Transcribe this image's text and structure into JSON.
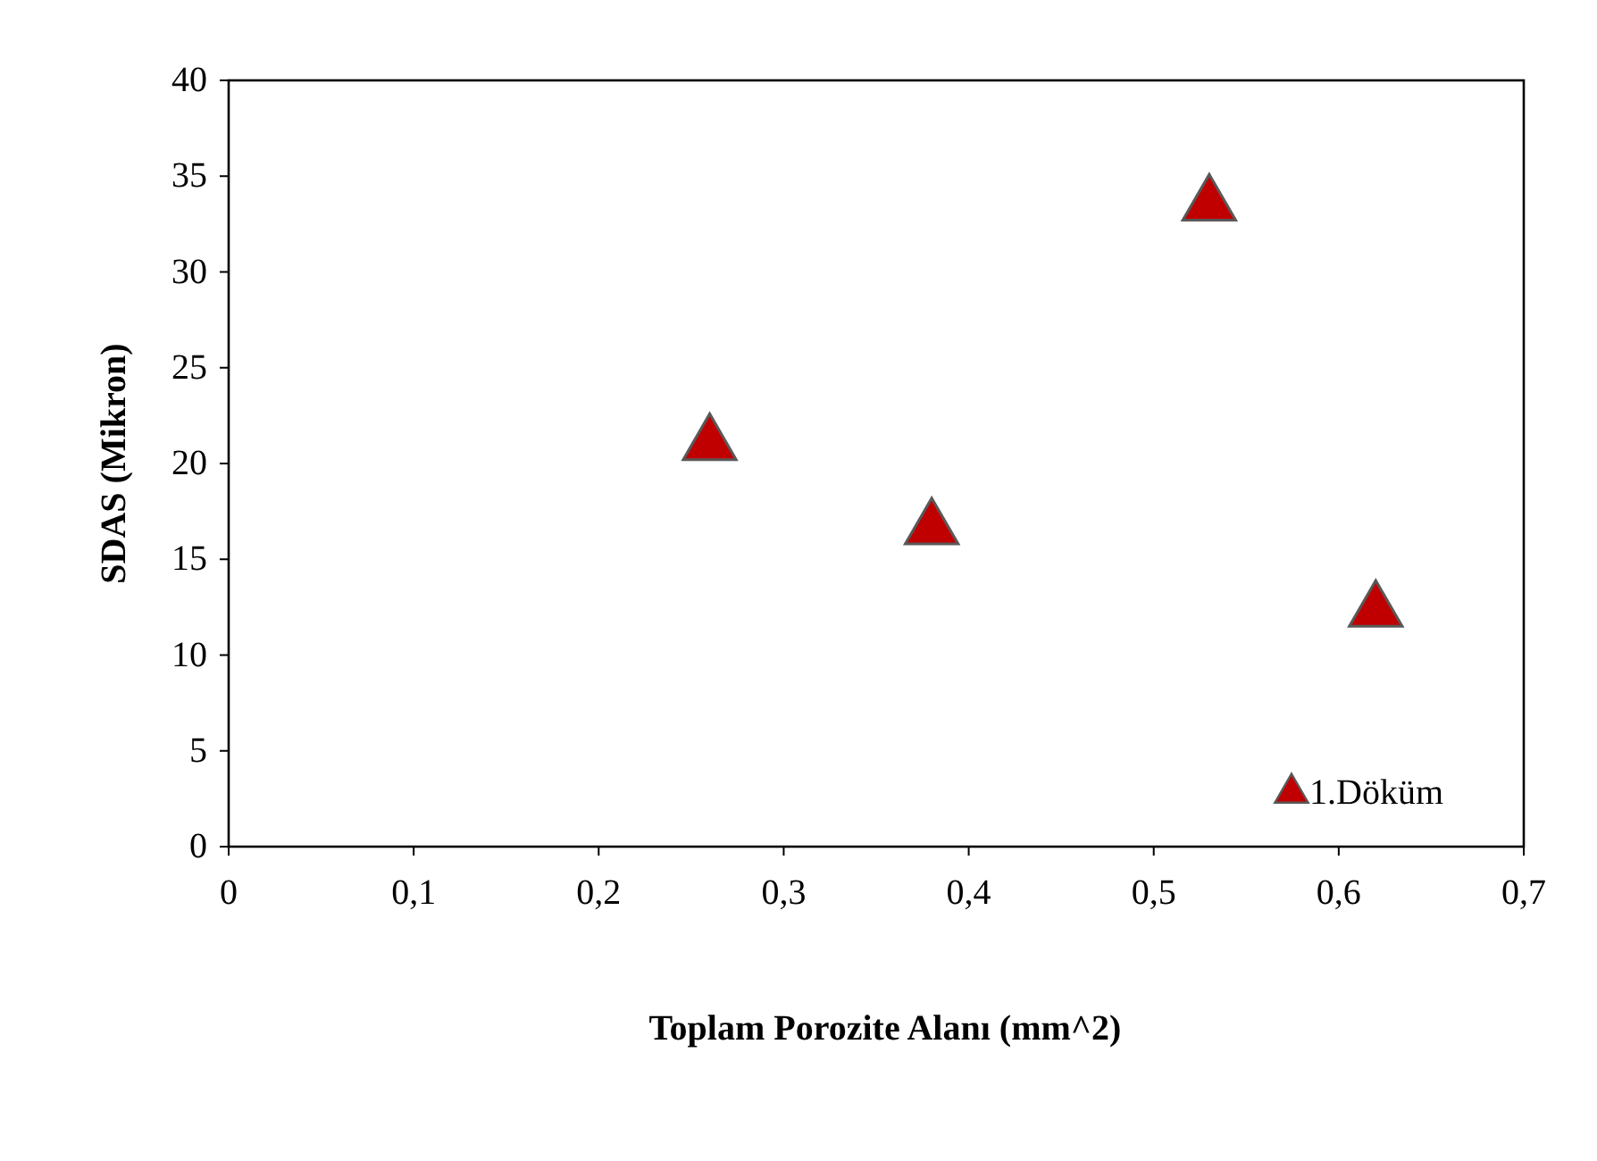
{
  "chart_data": {
    "type": "scatter",
    "xlabel": "Toplam Porozite Alanı (mm^2)",
    "ylabel": "SDAS (Mikron)",
    "xlim": [
      0,
      0.7
    ],
    "xticks": [
      {
        "value": 0,
        "label": "0"
      },
      {
        "value": 0.1,
        "label": "0,1"
      },
      {
        "value": 0.2,
        "label": "0,2"
      },
      {
        "value": 0.3,
        "label": "0,3"
      },
      {
        "value": 0.4,
        "label": "0,4"
      },
      {
        "value": 0.5,
        "label": "0,5"
      },
      {
        "value": 0.6,
        "label": "0,6"
      },
      {
        "value": 0.7,
        "label": "0,7"
      }
    ],
    "ylim": [
      0,
      40
    ],
    "yticks": [
      0,
      5,
      10,
      15,
      20,
      25,
      30,
      35,
      40
    ],
    "grid": false,
    "legend": "bottom right",
    "marker": "triangle",
    "series": [
      {
        "name": "1.Döküm",
        "color": "#c00000",
        "x": [
          0.26,
          0.38,
          0.53,
          0.62
        ],
        "values": [
          21,
          16.6,
          33.5,
          12.3
        ]
      }
    ]
  }
}
